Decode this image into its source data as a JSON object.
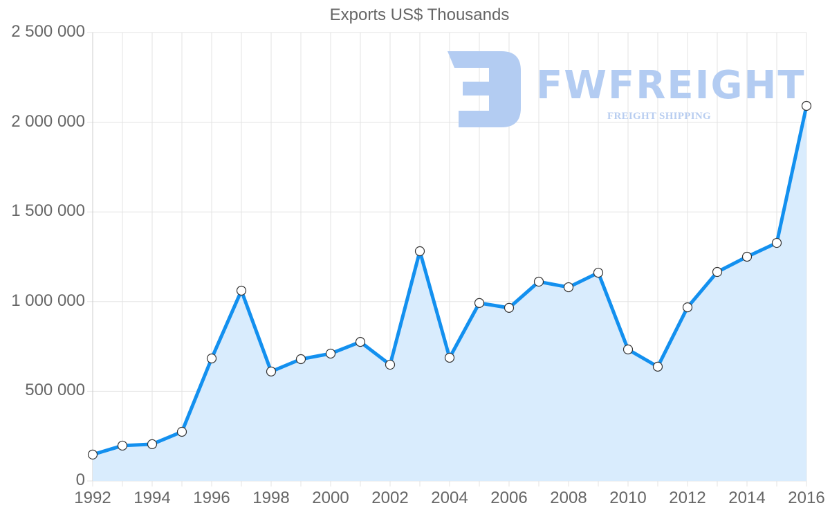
{
  "chart_data": {
    "type": "area",
    "title": "Exports US$ Thousands",
    "xlabel": "",
    "ylabel": "",
    "x": [
      1992,
      1993,
      1994,
      1995,
      1996,
      1997,
      1998,
      1999,
      2000,
      2001,
      2002,
      2003,
      2004,
      2005,
      2006,
      2007,
      2008,
      2009,
      2010,
      2011,
      2012,
      2013,
      2014,
      2015,
      2016
    ],
    "series": [
      {
        "name": "Exports US$ Thousands",
        "values": [
          147000,
          197000,
          205000,
          274000,
          683000,
          1061000,
          610000,
          679000,
          710000,
          775000,
          648000,
          1281000,
          687000,
          992000,
          965000,
          1111000,
          1080000,
          1161000,
          733000,
          637000,
          968000,
          1165000,
          1250000,
          1327000,
          2091000
        ]
      }
    ],
    "ylim": [
      0,
      2500000
    ],
    "yticks": [
      0,
      500000,
      1000000,
      1500000,
      2000000,
      2500000
    ],
    "ytick_labels": [
      "0",
      "500 000",
      "1 000 000",
      "1 500 000",
      "2 000 000",
      "2 500 000"
    ],
    "xtick_labels": [
      "1992",
      "1994",
      "1996",
      "1998",
      "2000",
      "2002",
      "2004",
      "2006",
      "2008",
      "2010",
      "2012",
      "2014",
      "2016"
    ],
    "grid": true,
    "legend": "none"
  },
  "colors": {
    "line": "#1390ef",
    "fill": "#d9ecfd",
    "point_fill": "#ffffff",
    "point_stroke": "#333333",
    "grid": "#e3e3e3",
    "text": "#666666",
    "watermark": "#b3ccf2"
  },
  "watermark": {
    "brand": "FWFREIGHT",
    "tagline": "FREIGHT SHIPPING"
  }
}
